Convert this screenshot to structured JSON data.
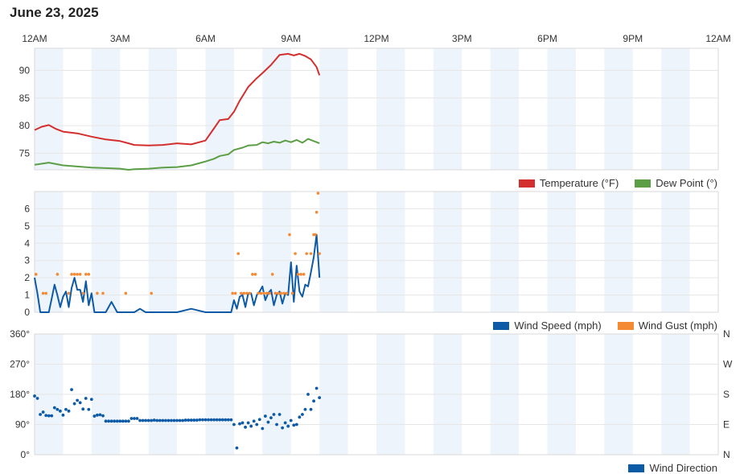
{
  "header": {
    "title": "June 23, 2025"
  },
  "colors": {
    "temperature": "#d32f2f",
    "dew_point": "#5c9e46",
    "wind_speed": "#0d5aa7",
    "wind_gust": "#f58a34",
    "wind_direction": "#0d5aa7",
    "band": "#eef4fb",
    "grid": "#e6e6e6"
  },
  "chart_data": [
    {
      "type": "line",
      "x_unit": "hour",
      "xlim": [
        0,
        24
      ],
      "x_tick_values": [
        0,
        3,
        6,
        9,
        12,
        15,
        18,
        21,
        24
      ],
      "x_tick_labels": [
        "12AM",
        "3AM",
        "6AM",
        "9AM",
        "12PM",
        "3PM",
        "6PM",
        "9PM",
        "12AM"
      ],
      "ylim": [
        72,
        94
      ],
      "y_ticks": [
        75,
        80,
        85,
        90
      ],
      "grid": true,
      "legend_position": "bottom-right",
      "series": [
        {
          "name": "Temperature (°F)",
          "color": "#d32f2f",
          "x": [
            0,
            0.25,
            0.5,
            0.75,
            1.0,
            1.5,
            2.0,
            2.5,
            3.0,
            3.3,
            3.5,
            4.0,
            4.5,
            5.0,
            5.5,
            6.0,
            6.3,
            6.5,
            6.8,
            7.0,
            7.2,
            7.5,
            7.8,
            8.0,
            8.3,
            8.6,
            8.9,
            9.1,
            9.3,
            9.5,
            9.7,
            9.9,
            10.0
          ],
          "y": [
            79.2,
            79.8,
            80.1,
            79.4,
            78.9,
            78.6,
            78.0,
            77.5,
            77.2,
            76.8,
            76.5,
            76.4,
            76.5,
            76.8,
            76.6,
            77.3,
            79.5,
            81.0,
            81.2,
            82.5,
            84.5,
            87.0,
            88.6,
            89.5,
            91.0,
            92.8,
            93.0,
            92.7,
            93.0,
            92.6,
            92.0,
            90.6,
            89.1
          ]
        },
        {
          "name": "Dew Point (°)",
          "color": "#5c9e46",
          "x": [
            0,
            0.5,
            1.0,
            1.5,
            2.0,
            2.5,
            3.0,
            3.3,
            3.5,
            4.0,
            4.5,
            5.0,
            5.5,
            6.0,
            6.3,
            6.5,
            6.8,
            7.0,
            7.3,
            7.5,
            7.8,
            8.0,
            8.2,
            8.4,
            8.6,
            8.8,
            9.0,
            9.2,
            9.4,
            9.6,
            9.8,
            10.0
          ],
          "y": [
            72.9,
            73.3,
            72.8,
            72.6,
            72.4,
            72.3,
            72.2,
            72.0,
            72.1,
            72.2,
            72.4,
            72.5,
            72.8,
            73.5,
            74.0,
            74.5,
            74.8,
            75.6,
            76.0,
            76.4,
            76.5,
            77.0,
            76.8,
            77.1,
            76.9,
            77.3,
            77.0,
            77.4,
            76.9,
            77.6,
            77.2,
            76.8
          ]
        }
      ]
    },
    {
      "type": "line",
      "x_unit": "hour",
      "xlim": [
        0,
        24
      ],
      "ylim": [
        0,
        7
      ],
      "y_ticks": [
        0,
        1,
        2,
        3,
        4,
        5,
        6
      ],
      "grid": true,
      "legend_position": "bottom-right",
      "series": [
        {
          "name": "Wind Speed (mph)",
          "color": "#0d5aa7",
          "x": [
            0,
            0.1,
            0.2,
            0.35,
            0.5,
            0.6,
            0.7,
            0.8,
            0.9,
            1.0,
            1.1,
            1.2,
            1.3,
            1.4,
            1.5,
            1.6,
            1.7,
            1.8,
            1.9,
            2.0,
            2.1,
            2.2,
            2.3,
            2.5,
            2.7,
            2.9,
            3.1,
            3.3,
            3.5,
            3.7,
            3.9,
            4.1,
            4.3,
            4.5,
            5.0,
            5.5,
            6.0,
            6.5,
            6.9,
            7.0,
            7.1,
            7.2,
            7.3,
            7.4,
            7.5,
            7.6,
            7.7,
            7.8,
            7.9,
            8.0,
            8.1,
            8.2,
            8.3,
            8.4,
            8.5,
            8.6,
            8.7,
            8.8,
            8.9,
            9.0,
            9.1,
            9.2,
            9.3,
            9.4,
            9.5,
            9.6,
            9.7,
            9.8,
            9.9,
            10.0
          ],
          "y": [
            2,
            1.1,
            0,
            0,
            0,
            0.8,
            1.6,
            1.0,
            0.3,
            0.9,
            1.2,
            0.3,
            1.4,
            2.0,
            1.3,
            1.3,
            0.6,
            1.8,
            0.4,
            1.1,
            0,
            0,
            0,
            0,
            0.6,
            0,
            0,
            0,
            0,
            0.2,
            0,
            0,
            0,
            0,
            0,
            0.2,
            0,
            0,
            0,
            0.7,
            0.2,
            0.9,
            1.0,
            0.3,
            1.1,
            1.1,
            0.4,
            1.0,
            1.2,
            1.5,
            0.7,
            1.1,
            1.3,
            0.4,
            1.0,
            1.2,
            0.5,
            1.1,
            1.0,
            2.9,
            0.6,
            2.7,
            1.2,
            0.9,
            1.6,
            1.5,
            2.3,
            3.2,
            4.5,
            2.0
          ]
        },
        {
          "name": "Wind Gust (mph)",
          "color": "#f58a34",
          "x": [
            0.05,
            0.3,
            0.4,
            0.8,
            1.2,
            1.3,
            1.4,
            1.5,
            1.6,
            1.7,
            1.8,
            1.9,
            2.2,
            2.4,
            3.2,
            4.1,
            6.95,
            7.05,
            7.15,
            7.25,
            7.35,
            7.45,
            7.55,
            7.65,
            7.75,
            7.85,
            7.95,
            8.05,
            8.15,
            8.25,
            8.35,
            8.45,
            8.55,
            8.65,
            8.75,
            8.85,
            8.95,
            9.05,
            9.15,
            9.25,
            9.35,
            9.45,
            9.55,
            9.7,
            9.8,
            9.85,
            9.9,
            9.95,
            10.0
          ],
          "y": [
            2.2,
            1.1,
            1.1,
            2.2,
            1.1,
            2.2,
            2.2,
            2.2,
            2.2,
            1.1,
            2.2,
            2.2,
            1.1,
            1.1,
            1.1,
            1.1,
            1.1,
            1.1,
            3.4,
            1.1,
            1.1,
            1.1,
            1.1,
            2.2,
            2.2,
            1.1,
            1.1,
            1.1,
            1.1,
            1.1,
            2.2,
            1.1,
            1.1,
            1.1,
            1.1,
            1.1,
            4.5,
            1.1,
            3.4,
            2.2,
            2.2,
            2.2,
            3.4,
            3.4,
            4.5,
            4.5,
            5.8,
            6.9,
            3.4
          ]
        }
      ]
    },
    {
      "type": "scatter",
      "x_unit": "hour",
      "xlim": [
        0,
        24
      ],
      "ylim": [
        0,
        360
      ],
      "y_ticks": [
        0,
        90,
        180,
        270,
        360
      ],
      "y_tick_labels": [
        "0°",
        "90°",
        "180°",
        "270°",
        "360°"
      ],
      "right_tick_labels": [
        "N",
        "E",
        "S",
        "W",
        "N"
      ],
      "grid": true,
      "legend_position": "bottom-right",
      "series": [
        {
          "name": "Wind Direction",
          "color": "#0d5aa7",
          "x": [
            0.0,
            0.1,
            0.2,
            0.3,
            0.4,
            0.5,
            0.6,
            0.7,
            0.8,
            0.9,
            1.0,
            1.1,
            1.2,
            1.3,
            1.4,
            1.5,
            1.6,
            1.7,
            1.8,
            1.9,
            2.0,
            2.1,
            2.2,
            2.3,
            2.4,
            2.5,
            2.6,
            2.7,
            2.8,
            2.9,
            3.0,
            3.1,
            3.2,
            3.3,
            3.4,
            3.5,
            3.6,
            3.7,
            3.8,
            3.9,
            4.0,
            4.1,
            4.2,
            4.3,
            4.4,
            4.5,
            4.6,
            4.7,
            4.8,
            4.9,
            5.0,
            5.1,
            5.2,
            5.3,
            5.4,
            5.5,
            5.6,
            5.7,
            5.8,
            5.9,
            6.0,
            6.1,
            6.2,
            6.3,
            6.4,
            6.5,
            6.6,
            6.7,
            6.8,
            6.9,
            7.0,
            7.1,
            7.2,
            7.3,
            7.4,
            7.5,
            7.6,
            7.7,
            7.8,
            7.9,
            8.0,
            8.1,
            8.2,
            8.3,
            8.4,
            8.5,
            8.6,
            8.7,
            8.8,
            8.9,
            9.0,
            9.1,
            9.2,
            9.3,
            9.4,
            9.5,
            9.6,
            9.7,
            9.8,
            9.9,
            10.0
          ],
          "y": [
            175,
            168,
            120,
            127,
            117,
            116,
            116,
            140,
            135,
            130,
            118,
            135,
            130,
            194,
            152,
            162,
            155,
            136,
            168,
            135,
            165,
            115,
            118,
            119,
            116,
            100,
            100,
            100,
            100,
            100,
            100,
            100,
            100,
            100,
            108,
            108,
            108,
            102,
            102,
            102,
            102,
            102,
            103,
            102,
            102,
            102,
            102,
            102,
            102,
            102,
            102,
            102,
            102,
            103,
            103,
            103,
            103,
            103,
            104,
            104,
            104,
            104,
            104,
            104,
            104,
            104,
            104,
            104,
            104,
            104,
            90,
            20,
            92,
            95,
            82,
            95,
            85,
            100,
            90,
            105,
            78,
            115,
            97,
            110,
            120,
            90,
            120,
            80,
            95,
            85,
            102,
            88,
            90,
            112,
            120,
            135,
            180,
            135,
            160,
            198,
            170
          ]
        }
      ]
    }
  ]
}
